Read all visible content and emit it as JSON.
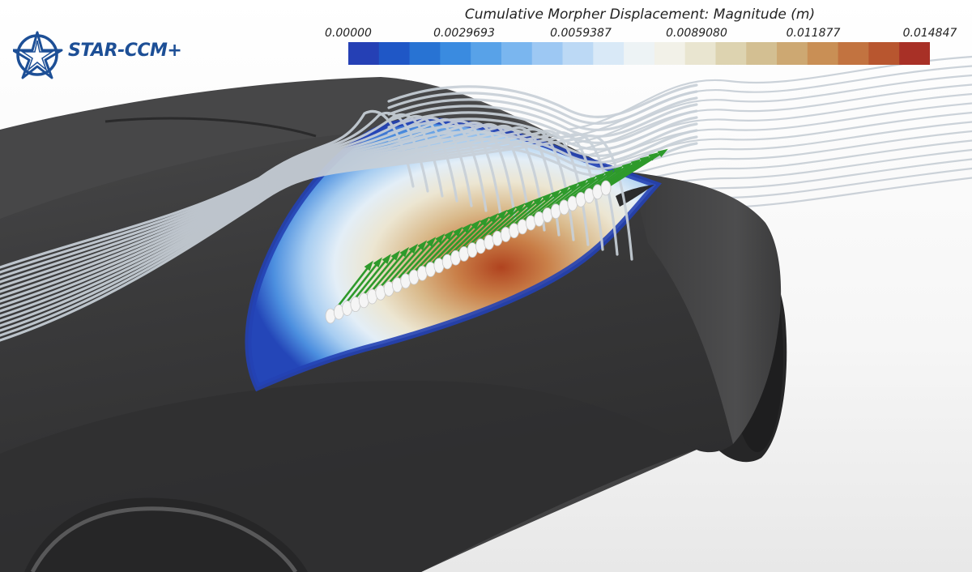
{
  "app": {
    "logo_text": "STAR-CCM+"
  },
  "colorbar": {
    "title": "Cumulative Morpher Displacement: Magnitude (m)",
    "labels": [
      "0.00000",
      "0.0029693",
      "0.0059387",
      "0.0089080",
      "0.011877",
      "0.014847"
    ],
    "colors": [
      "#2540b5",
      "#1f57c6",
      "#2873d3",
      "#3a8be0",
      "#58a2e8",
      "#7ab6ef",
      "#9dc8f3",
      "#bcd9f5",
      "#d9e9f7",
      "#edf3f5",
      "#f2f1e8",
      "#e9e5d0",
      "#ddd3b0",
      "#d3bf92",
      "#cda872",
      "#c98f55",
      "#c27340",
      "#b8562f",
      "#a83026"
    ]
  },
  "scene": {
    "colors": {
      "body": "#3c3c3d",
      "body_light": "#565657",
      "tire": "#252526",
      "streamline": "#c3cbd3",
      "vector": "#2e9a2b",
      "seed": "#f5f5f5"
    }
  }
}
